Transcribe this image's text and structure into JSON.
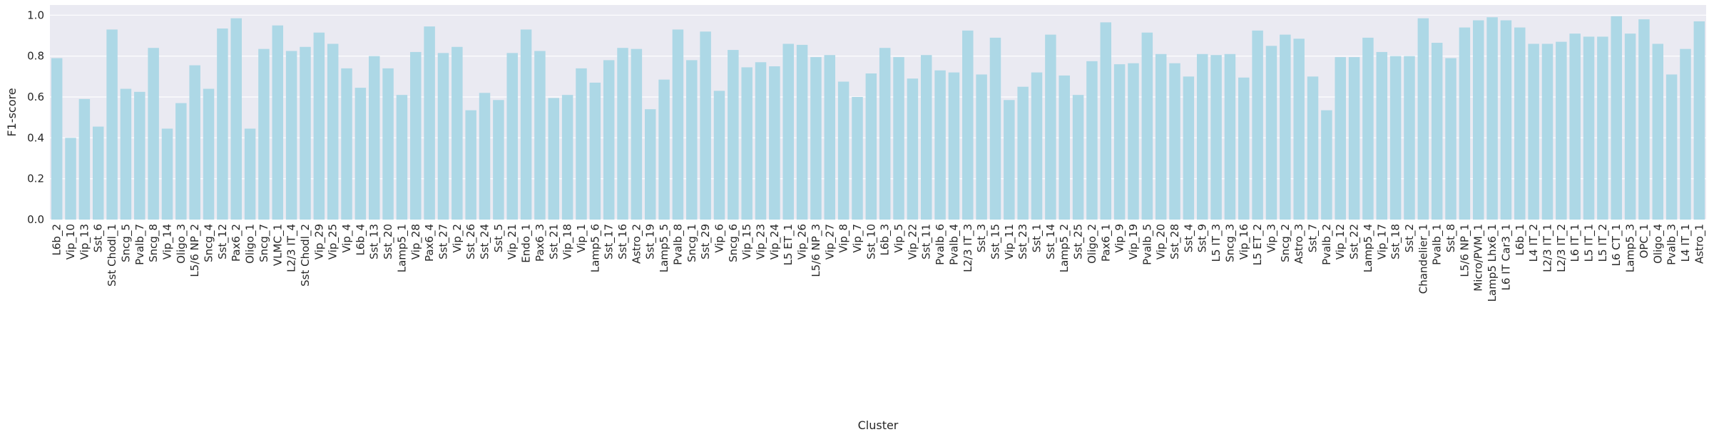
{
  "chart_data": {
    "type": "bar",
    "xlabel": "Cluster",
    "ylabel": "F1-score",
    "ylim": [
      0,
      1.05
    ],
    "yticks": [
      "0.0",
      "0.2",
      "0.4",
      "0.6",
      "0.8",
      "1.0"
    ],
    "grid": true,
    "colors": {
      "bar": "#add8e6",
      "plot_background": "#eaeaf2",
      "grid": "#ffffff",
      "text": "#262626"
    },
    "categories": [
      "L6b_2",
      "Vip_10",
      "Vip_13",
      "Sst_6",
      "Sst Chodl_1",
      "Sncg_5",
      "Pvalb_7",
      "Sncg_8",
      "Vip_14",
      "Oligo_3",
      "L5/6 NP_2",
      "Sncg_4",
      "Sst_12",
      "Pax6_2",
      "Oligo_1",
      "Sncg_7",
      "VLMC_1",
      "L2/3 IT_4",
      "Sst Chodl_2",
      "Vip_29",
      "Vip_25",
      "Vip_4",
      "L6b_4",
      "Sst_13",
      "Sst_20",
      "Lamp5_1",
      "Vip_28",
      "Pax6_4",
      "Sst_27",
      "Vip_2",
      "Sst_26",
      "Sst_24",
      "Sst_5",
      "Vip_21",
      "Endo_1",
      "Pax6_3",
      "Sst_21",
      "Vip_18",
      "Vip_1",
      "Lamp5_6",
      "Sst_17",
      "Sst_16",
      "Astro_2",
      "Sst_19",
      "Lamp5_5",
      "Pvalb_8",
      "Sncg_1",
      "Sst_29",
      "Vip_6",
      "Sncg_6",
      "Vip_15",
      "Vip_23",
      "Vip_24",
      "L5 ET_1",
      "Vip_26",
      "L5/6 NP_3",
      "Vip_27",
      "Vip_8",
      "Vip_7",
      "Sst_10",
      "L6b_3",
      "Vip_5",
      "Vip_22",
      "Sst_11",
      "Pvalb_6",
      "Pvalb_4",
      "L2/3 IT_3",
      "Sst_3",
      "Sst_15",
      "Vip_11",
      "Sst_23",
      "Sst_1",
      "Sst_14",
      "Lamp5_2",
      "Sst_25",
      "Oligo_2",
      "Pax6_1",
      "Vip_9",
      "Vip_19",
      "Pvalb_5",
      "Vip_20",
      "Sst_28",
      "Sst_4",
      "Sst_9",
      "L5 IT_3",
      "Sncg_3",
      "Vip_16",
      "L5 ET_2",
      "Vip_3",
      "Sncg_2",
      "Astro_3",
      "Sst_7",
      "Pvalb_2",
      "Vip_12",
      "Sst_22",
      "Lamp5_4",
      "Vip_17",
      "Sst_18",
      "Sst_2",
      "Chandelier_1",
      "Pvalb_1",
      "Sst_8",
      "L5/6 NP_1",
      "Micro/PVM_1",
      "Lamp5 Lhx6_1",
      "L6 IT Car3_1",
      "L6b_1",
      "L4 IT_2",
      "L2/3 IT_1",
      "L2/3 IT_2",
      "L6 IT_1",
      "L5 IT_1",
      "L5 IT_2",
      "L6 CT_1",
      "Lamp5_3",
      "OPC_1",
      "Oligo_4",
      "Pvalb_3",
      "L4 IT_1",
      "Astro_1"
    ],
    "values": [
      0.79,
      0.4,
      0.59,
      0.455,
      0.93,
      0.64,
      0.625,
      0.84,
      0.445,
      0.57,
      0.755,
      0.64,
      0.935,
      0.985,
      0.445,
      0.835,
      0.95,
      0.825,
      0.845,
      0.915,
      0.86,
      0.74,
      0.645,
      0.8,
      0.74,
      0.61,
      0.82,
      0.945,
      0.815,
      0.845,
      0.535,
      0.62,
      0.585,
      0.815,
      0.93,
      0.825,
      0.595,
      0.61,
      0.74,
      0.67,
      0.78,
      0.84,
      0.835,
      0.54,
      0.685,
      0.93,
      0.78,
      0.92,
      0.63,
      0.83,
      0.745,
      0.77,
      0.75,
      0.86,
      0.855,
      0.795,
      0.805,
      0.675,
      0.6,
      0.715,
      0.84,
      0.795,
      0.69,
      0.805,
      0.73,
      0.72,
      0.925,
      0.71,
      0.89,
      0.585,
      0.65,
      0.72,
      0.905,
      0.705,
      0.61,
      0.775,
      0.965,
      0.76,
      0.765,
      0.915,
      0.81,
      0.765,
      0.7,
      0.81,
      0.805,
      0.81,
      0.695,
      0.925,
      0.85,
      0.905,
      0.885,
      0.7,
      0.535,
      0.795,
      0.795,
      0.89,
      0.82,
      0.8,
      0.8,
      0.985,
      0.865,
      0.79,
      0.94,
      0.975,
      0.99,
      0.975,
      0.94,
      0.86,
      0.86,
      0.87,
      0.91,
      0.895,
      0.895,
      0.995,
      0.91,
      0.98,
      0.86,
      0.71,
      0.835,
      0.97
    ]
  }
}
